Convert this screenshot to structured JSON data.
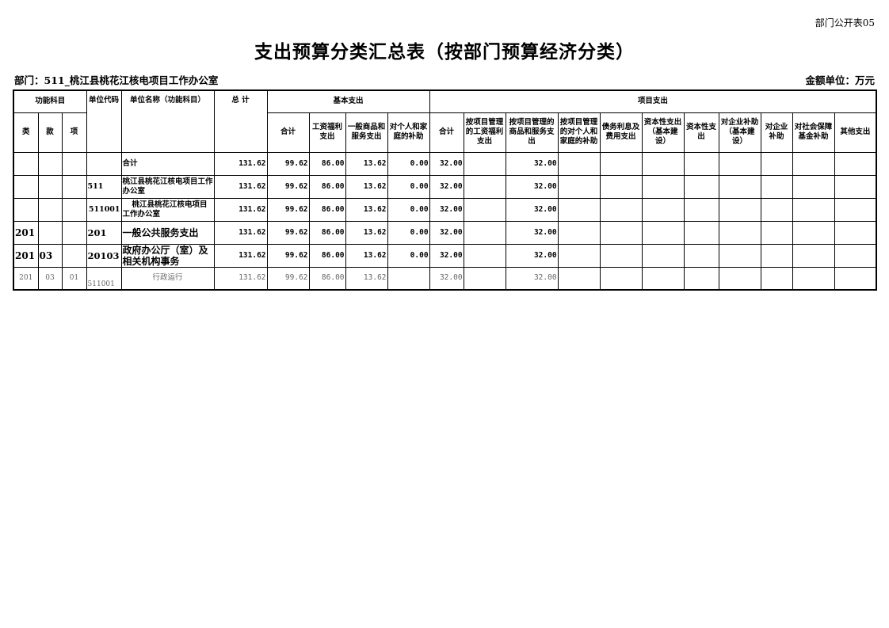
{
  "corner_label": "部门公开表05",
  "title": "支出预算分类汇总表（按部门预算经济分类）",
  "department": "部门：511_桃江县桃花江核电项目工作办公室",
  "unit": "金额单位：万元",
  "headers": {
    "func_subject": "功能科目",
    "lei": "类",
    "kuan": "款",
    "xiang": "项",
    "unit_code": "单位代码",
    "unit_name": "单位名称（功能科目）",
    "total": "总  计",
    "basic": "基本支出",
    "project": "项目支出",
    "basic_cols": [
      "合计",
      "工资福利支出",
      "一般商品和服务支出",
      "对个人和家庭的补助"
    ],
    "project_cols": [
      "合计",
      "按项目管理的工资福利支出",
      "按项目管理的商品和服务支出",
      "按项目管理的对个人和家庭的补助",
      "债务利息及费用支出",
      "资本性支出（基本建设）",
      "资本性支出",
      "对企业补助（基本建设）",
      "对企业补助",
      "对社会保障基金补助",
      "其他支出"
    ]
  },
  "rows": [
    {
      "lei": "",
      "kuan": "",
      "xiang": "",
      "code": "",
      "name": "合计",
      "vals": [
        "131.62",
        "99.62",
        "86.00",
        "13.62",
        "0.00",
        "32.00",
        "",
        "32.00",
        "",
        "",
        "",
        "",
        "",
        "",
        "",
        ""
      ]
    },
    {
      "lei": "",
      "kuan": "",
      "xiang": "",
      "code": "511",
      "name": "桃江县桃花江核电项目工作办公室",
      "vals": [
        "131.62",
        "99.62",
        "86.00",
        "13.62",
        "0.00",
        "32.00",
        "",
        "32.00",
        "",
        "",
        "",
        "",
        "",
        "",
        "",
        ""
      ]
    },
    {
      "lei": "",
      "kuan": "",
      "xiang": "",
      "code": "511001",
      "name": "桃江县桃花江核电项目工作办公室",
      "vals": [
        "131.62",
        "99.62",
        "86.00",
        "13.62",
        "0.00",
        "32.00",
        "",
        "32.00",
        "",
        "",
        "",
        "",
        "",
        "",
        "",
        ""
      ]
    },
    {
      "lei": "201",
      "kuan": "",
      "xiang": "",
      "code": "201",
      "name": "一般公共服务支出",
      "vals": [
        "131.62",
        "99.62",
        "86.00",
        "13.62",
        "0.00",
        "32.00",
        "",
        "32.00",
        "",
        "",
        "",
        "",
        "",
        "",
        "",
        ""
      ]
    },
    {
      "lei": "201",
      "kuan": "03",
      "xiang": "",
      "code": "20103",
      "name": "政府办公厅（室）及相关机构事务",
      "vals": [
        "131.62",
        "99.62",
        "86.00",
        "13.62",
        "0.00",
        "32.00",
        "",
        "32.00",
        "",
        "",
        "",
        "",
        "",
        "",
        "",
        ""
      ]
    },
    {
      "lei": "201",
      "kuan": "03",
      "xiang": "01",
      "code": "511001",
      "name": "行政运行",
      "vals": [
        "131.62",
        "99.62",
        "86.00",
        "13.62",
        "",
        "32.00",
        "",
        "32.00",
        "",
        "",
        "",
        "",
        "",
        "",
        "",
        ""
      ]
    }
  ]
}
